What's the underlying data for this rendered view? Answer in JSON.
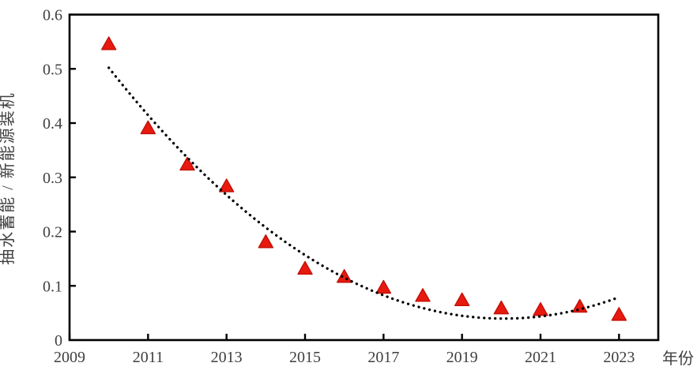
{
  "figure": {
    "background_color": "#ffffff",
    "axis_color": "#000000",
    "tick_label_color": "#3f3f3f"
  },
  "chart_data": {
    "type": "scatter",
    "title": "",
    "xlabel": "年份",
    "ylabel": "抽水蓄能 / 新能源装机",
    "x": [
      2010,
      2011,
      2012,
      2013,
      2014,
      2015,
      2016,
      2017,
      2018,
      2019,
      2020,
      2021,
      2022,
      2023
    ],
    "y": [
      0.545,
      0.39,
      0.323,
      0.283,
      0.18,
      0.131,
      0.116,
      0.096,
      0.081,
      0.073,
      0.058,
      0.055,
      0.061,
      0.046
    ],
    "marker": {
      "shape": "triangle-up",
      "color": "#e8190f",
      "edge_color": "#c01208"
    },
    "trendline": {
      "style": "dotted",
      "color": "#000000",
      "fit": "quadratic",
      "coefficients": {
        "a": 0.004566,
        "b": -0.101028,
        "c": 0.598462
      },
      "t_origin": 2009,
      "x_range": [
        2010,
        2023
      ]
    },
    "xlim": [
      2009,
      2024
    ],
    "ylim": [
      0,
      0.6
    ],
    "x_ticks": [
      2009,
      2011,
      2013,
      2015,
      2017,
      2019,
      2021,
      2023
    ],
    "x_tick_labels": [
      "2009",
      "2011",
      "2013",
      "2015",
      "2017",
      "2019",
      "2021",
      "2023"
    ],
    "y_ticks": [
      0,
      0.1,
      0.2,
      0.3,
      0.4,
      0.5,
      0.6
    ],
    "y_tick_labels": [
      "0",
      "0.1",
      "0.2",
      "0.3",
      "0.4",
      "0.5",
      "0.6"
    ],
    "grid": false,
    "legend": "none"
  }
}
